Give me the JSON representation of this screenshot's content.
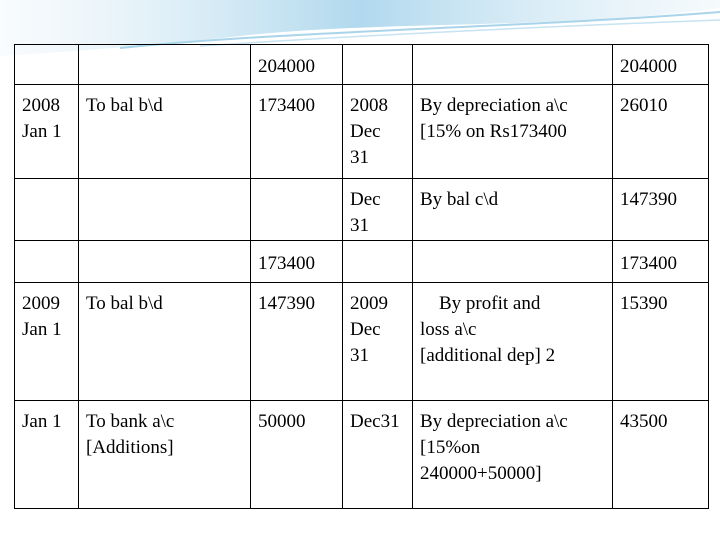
{
  "table": {
    "rows": [
      [
        null,
        null,
        "204000",
        null,
        null,
        "204000"
      ],
      [
        "2008\nJan 1",
        "To bal b\\d",
        "173400",
        "2008\nDec\n31",
        "By depreciation a\\c\n[15% on Rs173400",
        "26010"
      ],
      [
        null,
        null,
        null,
        "Dec\n31",
        "By bal c\\d",
        "147390"
      ],
      [
        null,
        null,
        "173400",
        null,
        null,
        "173400"
      ],
      [
        "2009\nJan 1",
        "To bal b\\d",
        "147390",
        "2009\nDec\n31",
        "    By profit and\nloss a\\c\n[additional dep] 2",
        "15390"
      ],
      [
        "Jan 1",
        "To bank a\\c\n[Additions]",
        "50000",
        "Dec31",
        "By depreciation a\\c\n[15%on\n240000+50000]",
        "43500"
      ]
    ]
  }
}
